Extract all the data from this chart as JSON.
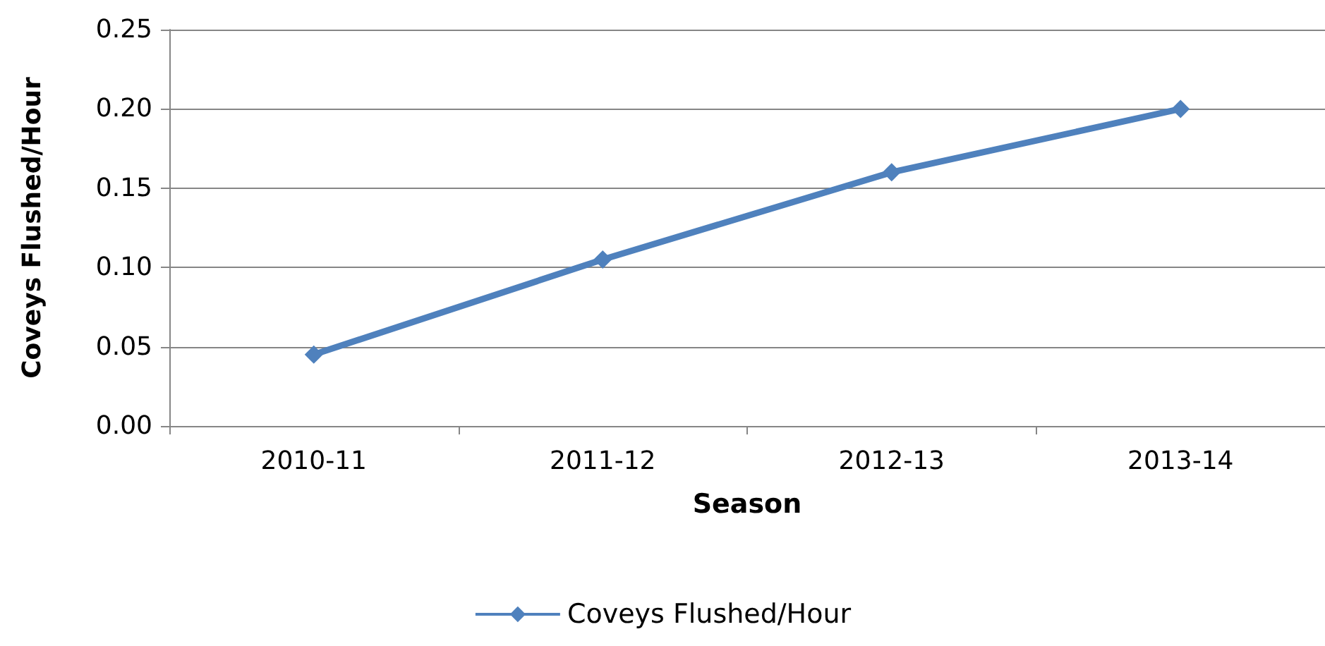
{
  "chart_data": {
    "type": "line",
    "xlabel": "Season",
    "ylabel": "Coveys Flushed/Hour",
    "categories": [
      "2010-11",
      "2011-12",
      "2012-13",
      "2013-14"
    ],
    "series": [
      {
        "name": "Coveys Flushed/Hour",
        "color": "#4f81bd",
        "values": [
          0.045,
          0.105,
          0.16,
          0.2
        ]
      }
    ],
    "ylim": [
      0,
      0.25
    ],
    "yticks": [
      {
        "value": 0,
        "label": "0.00"
      },
      {
        "value": 0.05,
        "label": "0.05"
      },
      {
        "value": 0.1,
        "label": "0.10"
      },
      {
        "value": 0.15,
        "label": "0.15"
      },
      {
        "value": 0.2,
        "label": "0.20"
      },
      {
        "value": 0.25,
        "label": "0.25"
      }
    ],
    "grid": "y",
    "legend": "bottom",
    "marker": "diamond",
    "line_style": "solid"
  }
}
